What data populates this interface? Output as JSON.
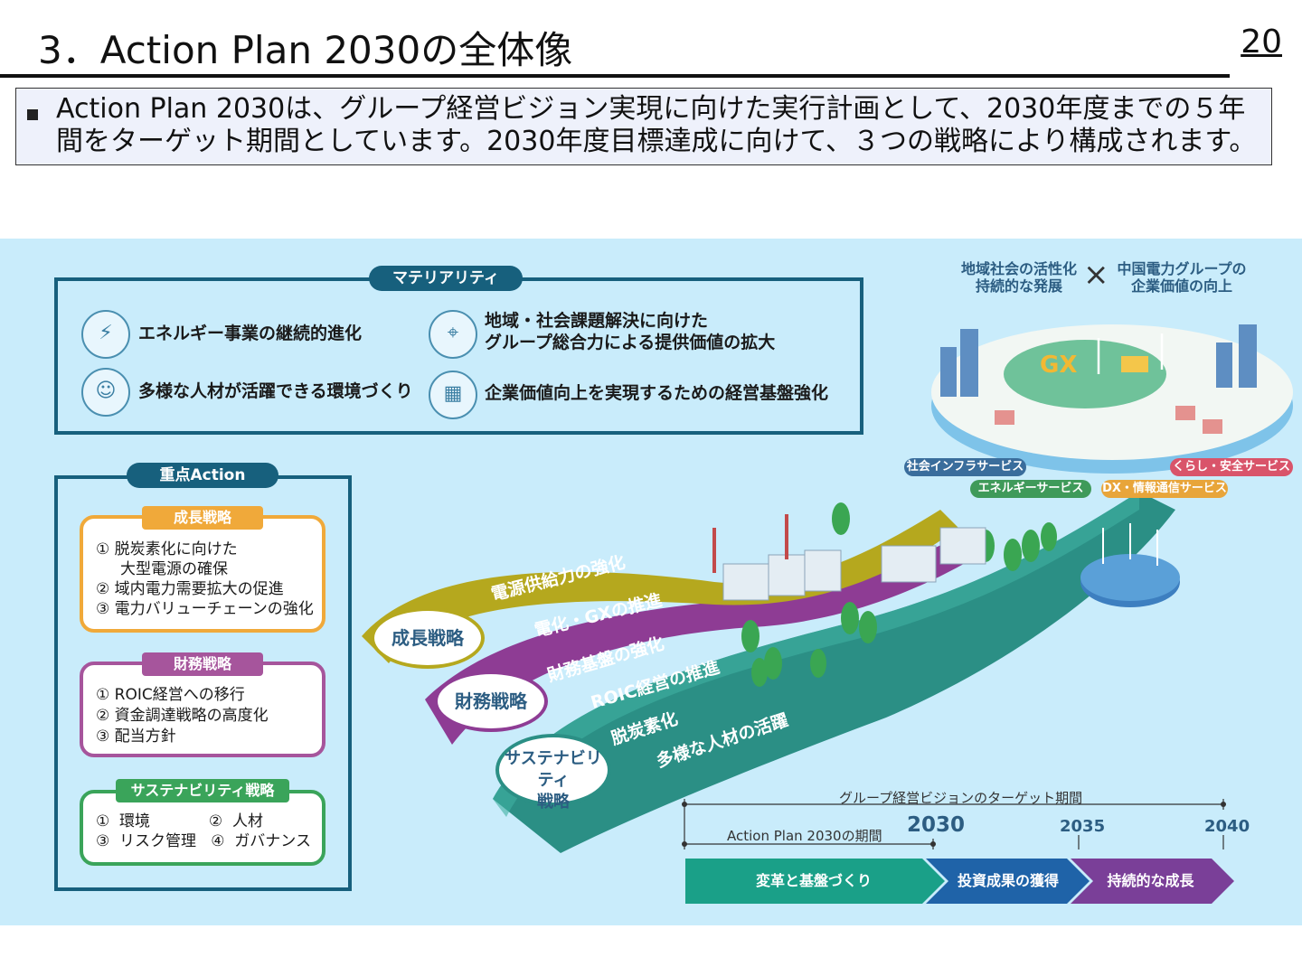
{
  "header": {
    "title": "3．Action Plan 2030の全体像",
    "page_number": "20"
  },
  "summary": {
    "text": "Action Plan 2030は、グループ経営ビジョン実現に向けた実行計画として、2030年度までの５年間をターゲット期間としています。2030年度目標達成に向けて、３つの戦略により構成されます。"
  },
  "materiality": {
    "label": "マテリアリティ",
    "items": [
      {
        "text": "エネルギー事業の継続的進化",
        "icon": "energy-icon"
      },
      {
        "text": "地域・社会課題解決に向けた\nグループ総合力による提供価値の拡大",
        "icon": "map-icon"
      },
      {
        "text": "多様な人材が活躍できる環境づくり",
        "icon": "people-icon"
      },
      {
        "text": "企業価値向上を実現するための経営基盤強化",
        "icon": "building-chart-icon"
      }
    ]
  },
  "key_action": {
    "label": "重点Action",
    "strategies": [
      {
        "name": "成長戦略",
        "color": "#f0a93a",
        "lines": [
          "①  脱炭素化に向けた",
          "     大型電源の確保",
          "②  域内電力需要拡大の促進",
          "③  電力バリューチェーンの強化"
        ]
      },
      {
        "name": "財務戦略",
        "color": "#a6559c",
        "lines": [
          "①  ROIC経営への移行",
          "②  資金調達戦略の高度化",
          "③  配当方針"
        ]
      },
      {
        "name": "サステナビリティ戦略",
        "color": "#3aa45a",
        "lines": [
          "①  環境            ②  人材",
          "③  リスク管理   ④  ガバナンス"
        ]
      }
    ]
  },
  "vision": {
    "left": "地域社会の活性化\n持続的な発展",
    "cross": "×",
    "right": "中国電力グループの\n企業価値の向上"
  },
  "city_label": "GX",
  "services": [
    {
      "label": "社会インフラサービス",
      "color": "#3a6d9c"
    },
    {
      "label": "エネルギーサービス",
      "color": "#3f9a5a"
    },
    {
      "label": "DX・情報通信サービス",
      "color": "#e8a53a"
    },
    {
      "label": "くらし・安全サービス",
      "color": "#d9546a"
    }
  ],
  "roads": [
    {
      "name": "成長戦略",
      "color": "#b5a81e",
      "lines": [
        "電源供給力の強化",
        "電化・GXの推進"
      ]
    },
    {
      "name": "財務戦略",
      "color": "#8e3c94",
      "lines": [
        "財務基盤の強化",
        "ROIC経営の推進"
      ]
    },
    {
      "name": "サステナビリティ\n戦略",
      "color": "#2b8f85",
      "lines": [
        "脱炭素化",
        "多様な人材の活躍"
      ]
    }
  ],
  "timeline": {
    "vision_period": "グループ経営ビジョンのターゲット期間",
    "ap_period": "Action Plan 2030の期間",
    "years": [
      "2030",
      "2035",
      "2040"
    ],
    "phases": [
      {
        "label": "変革と基盤づくり",
        "color": "#1aa088"
      },
      {
        "label": "投資成果の獲得",
        "color": "#1f63a8"
      },
      {
        "label": "持続的な成長",
        "color": "#7a3f98"
      }
    ]
  },
  "colors": {
    "panel_bg": "#c9ecfb",
    "frame": "#17607d"
  }
}
